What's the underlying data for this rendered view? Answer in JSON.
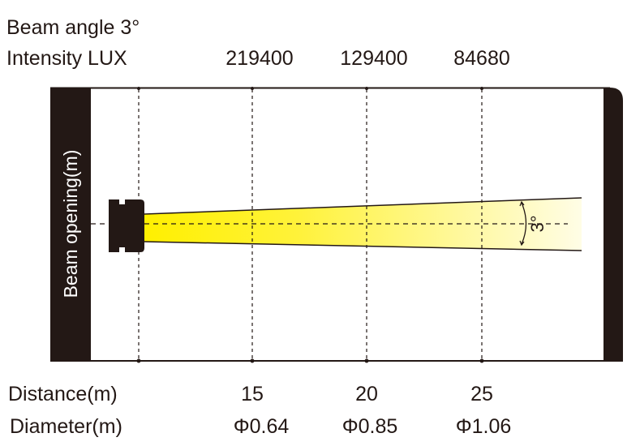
{
  "header": {
    "beam_angle": "Beam angle 3°",
    "intensity_label": "Intensity LUX",
    "intensity_values": [
      "219400",
      "129400",
      "84680"
    ]
  },
  "diagram": {
    "axis_label": "Beam opening(m)",
    "angle_label": "3°",
    "beam_color_start": "#fff000",
    "beam_color_end": "#fffde6",
    "frame_color": "#231815"
  },
  "footer": {
    "distance_label": "Distance(m)",
    "distance_values": [
      "15",
      "20",
      "25"
    ],
    "diameter_label": "Diameter(m)",
    "diameter_values": [
      "Φ0.64",
      "Φ0.85",
      "Φ1.06"
    ]
  }
}
